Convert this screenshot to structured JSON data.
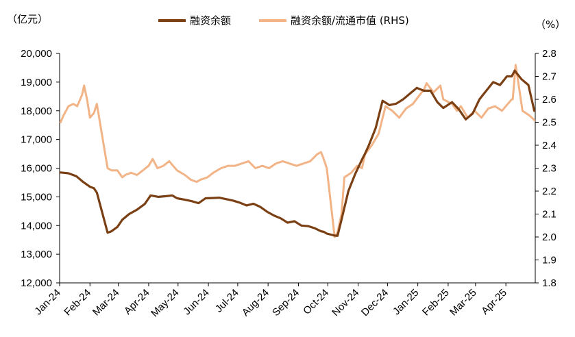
{
  "chart_data": {
    "type": "line",
    "y_left_unit": "（亿元）",
    "y_right_unit": "（%）",
    "ylim_left": [
      12000,
      20000
    ],
    "ylim_right": [
      1.8,
      2.8
    ],
    "y_left_ticks": [
      "12,000",
      "13,000",
      "14,000",
      "15,000",
      "16,000",
      "17,000",
      "18,000",
      "19,000",
      "20,000"
    ],
    "y_right_ticks": [
      "1.8",
      "1.9",
      "2.0",
      "2.1",
      "2.2",
      "2.3",
      "2.4",
      "2.5",
      "2.6",
      "2.7",
      "2.8"
    ],
    "x_ticks": [
      "Jan-24",
      "Feb-24",
      "Mar-24",
      "Apr-24",
      "May-24",
      "Jun-24",
      "Jul-24",
      "Aug-24",
      "Sep-24",
      "Oct-24",
      "Nov-24",
      "Dec-24",
      "Jan-25",
      "Feb-25",
      "Mar-25",
      "Apr-25"
    ],
    "x_range": [
      "2024-01-01",
      "2025-05-01"
    ],
    "grid": false,
    "legend_position": "top-center",
    "series": [
      {
        "name": "融资余额",
        "axis": "left",
        "color": "#7b3f14",
        "x": [
          "2024-01-02",
          "2024-01-10",
          "2024-01-18",
          "2024-01-25",
          "2024-02-01",
          "2024-02-05",
          "2024-02-08",
          "2024-02-19",
          "2024-02-23",
          "2024-02-29",
          "2024-03-05",
          "2024-03-12",
          "2024-03-20",
          "2024-03-28",
          "2024-04-03",
          "2024-04-11",
          "2024-04-18",
          "2024-04-25",
          "2024-04-30",
          "2024-05-08",
          "2024-05-15",
          "2024-05-22",
          "2024-05-29",
          "2024-06-05",
          "2024-06-12",
          "2024-06-19",
          "2024-06-26",
          "2024-07-03",
          "2024-07-10",
          "2024-07-17",
          "2024-07-24",
          "2024-07-31",
          "2024-08-07",
          "2024-08-14",
          "2024-08-21",
          "2024-08-28",
          "2024-09-04",
          "2024-09-11",
          "2024-09-18",
          "2024-09-24",
          "2024-09-27",
          "2024-09-30",
          "2024-10-08",
          "2024-10-11",
          "2024-10-15",
          "2024-10-22",
          "2024-10-29",
          "2024-11-05",
          "2024-11-08",
          "2024-11-12",
          "2024-11-19",
          "2024-11-26",
          "2024-12-03",
          "2024-12-10",
          "2024-12-17",
          "2024-12-24",
          "2024-12-31",
          "2025-01-07",
          "2025-01-14",
          "2025-01-21",
          "2025-01-27",
          "2025-02-05",
          "2025-02-12",
          "2025-02-19",
          "2025-02-26",
          "2025-03-05",
          "2025-03-12",
          "2025-03-19",
          "2025-03-26",
          "2025-04-02",
          "2025-04-07",
          "2025-04-10",
          "2025-04-17",
          "2025-04-24",
          "2025-04-30"
        ],
        "y": [
          15850,
          15820,
          15720,
          15520,
          15350,
          15300,
          15150,
          13750,
          13800,
          13950,
          14200,
          14400,
          14550,
          14750,
          15050,
          15000,
          15020,
          15050,
          14950,
          14900,
          14850,
          14780,
          14950,
          14960,
          14970,
          14920,
          14870,
          14800,
          14700,
          14760,
          14650,
          14480,
          14350,
          14250,
          14100,
          14150,
          14000,
          13980,
          13900,
          13800,
          13780,
          13720,
          13650,
          13640,
          14200,
          15200,
          15800,
          16300,
          16500,
          16800,
          17400,
          18350,
          18200,
          18250,
          18400,
          18600,
          18800,
          18700,
          18700,
          18300,
          18100,
          18300,
          18050,
          17700,
          17900,
          18400,
          18700,
          19000,
          18900,
          19200,
          19200,
          19400,
          19100,
          18900,
          18000
        ]
      },
      {
        "name": "融资余额/流通市值 (RHS)",
        "axis": "right",
        "color": "#f2b486",
        "x": [
          "2024-01-02",
          "2024-01-05",
          "2024-01-10",
          "2024-01-15",
          "2024-01-19",
          "2024-01-24",
          "2024-01-26",
          "2024-01-29",
          "2024-02-01",
          "2024-02-05",
          "2024-02-08",
          "2024-02-19",
          "2024-02-23",
          "2024-02-29",
          "2024-03-05",
          "2024-03-08",
          "2024-03-14",
          "2024-03-20",
          "2024-03-26",
          "2024-04-01",
          "2024-04-05",
          "2024-04-10",
          "2024-04-16",
          "2024-04-22",
          "2024-04-26",
          "2024-04-30",
          "2024-05-08",
          "2024-05-14",
          "2024-05-20",
          "2024-05-24",
          "2024-05-31",
          "2024-06-06",
          "2024-06-14",
          "2024-06-21",
          "2024-06-28",
          "2024-07-05",
          "2024-07-12",
          "2024-07-19",
          "2024-07-26",
          "2024-08-02",
          "2024-08-09",
          "2024-08-16",
          "2024-08-23",
          "2024-08-30",
          "2024-09-06",
          "2024-09-13",
          "2024-09-20",
          "2024-09-24",
          "2024-09-26",
          "2024-09-30",
          "2024-10-08",
          "2024-10-11",
          "2024-10-15",
          "2024-10-18",
          "2024-10-25",
          "2024-10-31",
          "2024-11-05",
          "2024-11-08",
          "2024-11-15",
          "2024-11-22",
          "2024-11-29",
          "2024-12-06",
          "2024-12-13",
          "2024-12-20",
          "2024-12-27",
          "2025-01-03",
          "2025-01-07",
          "2025-01-10",
          "2025-01-17",
          "2025-01-24",
          "2025-01-27",
          "2025-02-05",
          "2025-02-10",
          "2025-02-14",
          "2025-02-21",
          "2025-02-28",
          "2025-03-07",
          "2025-03-14",
          "2025-03-21",
          "2025-03-28",
          "2025-04-03",
          "2025-04-07",
          "2025-04-08",
          "2025-04-11",
          "2025-04-18",
          "2025-04-25",
          "2025-04-30"
        ],
        "y": [
          2.5,
          2.53,
          2.57,
          2.58,
          2.57,
          2.62,
          2.66,
          2.6,
          2.52,
          2.54,
          2.58,
          2.3,
          2.29,
          2.29,
          2.26,
          2.27,
          2.28,
          2.27,
          2.29,
          2.31,
          2.34,
          2.3,
          2.31,
          2.33,
          2.31,
          2.29,
          2.27,
          2.25,
          2.24,
          2.25,
          2.26,
          2.28,
          2.3,
          2.31,
          2.31,
          2.32,
          2.33,
          2.3,
          2.31,
          2.3,
          2.32,
          2.33,
          2.32,
          2.31,
          2.32,
          2.33,
          2.36,
          2.37,
          2.35,
          2.3,
          2.0,
          2.02,
          2.1,
          2.26,
          2.28,
          2.31,
          2.3,
          2.36,
          2.4,
          2.45,
          2.57,
          2.55,
          2.52,
          2.56,
          2.58,
          2.62,
          2.64,
          2.67,
          2.63,
          2.66,
          2.6,
          2.58,
          2.55,
          2.57,
          2.52,
          2.55,
          2.52,
          2.56,
          2.57,
          2.55,
          2.58,
          2.6,
          2.6,
          2.75,
          2.55,
          2.53,
          2.51
        ]
      }
    ]
  }
}
